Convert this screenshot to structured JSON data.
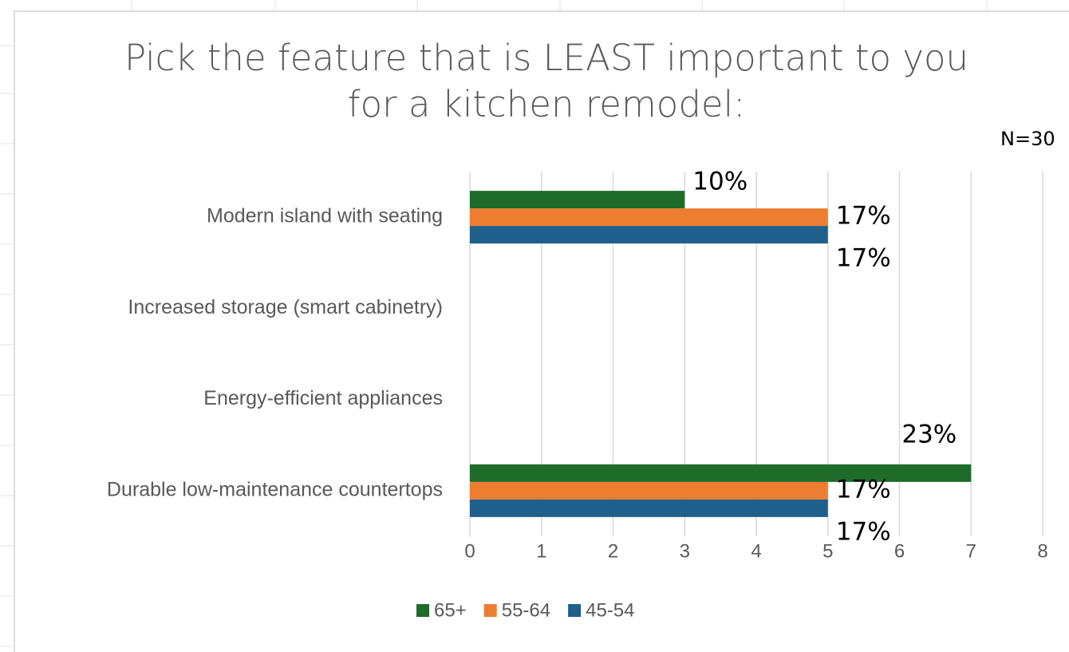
{
  "chart_data": {
    "type": "hbar",
    "title": "Pick the feature that is LEAST important to you for a kitchen remodel:",
    "annotation": "N=30",
    "categories": [
      "Modern island with seating",
      "Increased storage (smart cabinetry)",
      "Energy-efficient appliances",
      "Durable low-maintenance countertops"
    ],
    "series": [
      {
        "name": "65+",
        "color": "#1e6b2a",
        "values": [
          3,
          null,
          null,
          7
        ],
        "value_labels": [
          "10%",
          null,
          null,
          "23%"
        ]
      },
      {
        "name": "55-64",
        "color": "#ed7d31",
        "values": [
          5,
          null,
          null,
          5
        ],
        "value_labels": [
          "17%",
          null,
          null,
          "17%"
        ]
      },
      {
        "name": "45-54",
        "color": "#1f5f8b",
        "values": [
          5,
          null,
          null,
          5
        ],
        "value_labels": [
          "17%",
          null,
          null,
          "17%"
        ]
      }
    ],
    "xlim": [
      0,
      8
    ],
    "xticks": [
      0,
      1,
      2,
      3,
      4,
      5,
      6,
      7,
      8
    ],
    "grid": true,
    "legend": "bottom"
  }
}
